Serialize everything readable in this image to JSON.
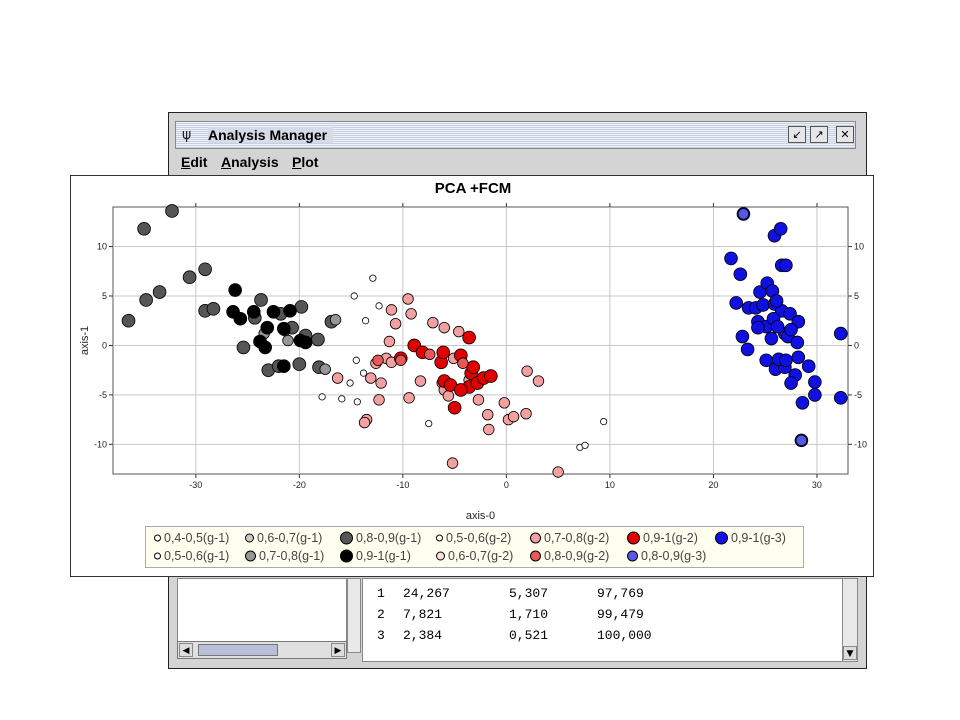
{
  "window": {
    "title": "Analysis Manager",
    "icon": "app-tree-icon",
    "buttons": [
      "minimize-icon",
      "maximize-icon",
      "close-icon"
    ],
    "menus": [
      {
        "label": "Edit",
        "mnemonic": "E",
        "rest": "dit"
      },
      {
        "label": "Analysis",
        "mnemonic": "A",
        "rest": "nalysis"
      },
      {
        "label": "Plot",
        "mnemonic": "P",
        "rest": "lot"
      }
    ]
  },
  "table": {
    "rows": [
      [
        "1",
        "24,267",
        "5,307",
        "97,769"
      ],
      [
        "2",
        "7,821",
        "1,710",
        "99,479"
      ],
      [
        "3",
        "2,384",
        "0,521",
        "100,000"
      ]
    ]
  },
  "plot": {
    "title": "PCA +FCM",
    "xlabel": "axis-0",
    "ylabel": "axis-1"
  },
  "chart_data": {
    "type": "scatter",
    "title": "PCA +FCM",
    "xlabel": "axis-0",
    "ylabel": "axis-1",
    "xlim": [
      -38,
      33
    ],
    "ylim": [
      -13,
      14
    ],
    "xticks": [
      -30,
      -20,
      -10,
      0,
      10,
      20,
      30
    ],
    "yticks": [
      -10,
      -5,
      0,
      5,
      10
    ],
    "grid": true,
    "legend_position": "bottom",
    "series": [
      {
        "name": "0,4-0,5(g-1)",
        "color": "#ffffff",
        "size": "tiny",
        "points": []
      },
      {
        "name": "0,6-0,7(g-1)",
        "color": "#c8c8c8",
        "size": "small",
        "points": []
      },
      {
        "name": "0,8-0,9(g-1)",
        "color": "#555555",
        "size": "large",
        "points": [
          [
            -35,
            11.8
          ],
          [
            -32.3,
            13.6
          ],
          [
            -36.5,
            2.5
          ],
          [
            -34.8,
            4.6
          ],
          [
            -33.5,
            5.4
          ],
          [
            -30.6,
            6.9
          ],
          [
            -29.1,
            7.7
          ],
          [
            -29.1,
            3.5
          ],
          [
            -28.3,
            3.7
          ],
          [
            -25.4,
            -0.2
          ],
          [
            -23.7,
            4.6
          ],
          [
            -23,
            -2.5
          ],
          [
            -22,
            -2.1
          ],
          [
            -20.7,
            1.8
          ],
          [
            -19.8,
            3.9
          ],
          [
            -19.4,
            1
          ],
          [
            -18.2,
            0.6
          ],
          [
            -21.8,
            3.2
          ],
          [
            -24.3,
            2.8
          ],
          [
            -16.9,
            2.4
          ],
          [
            -20,
            -1.9
          ],
          [
            -18.1,
            -2.2
          ]
        ]
      },
      {
        "name": "0,5-0,6(g-2)",
        "color": "#ffffff",
        "size": "tiny",
        "points": [
          [
            -12.9,
            6.8
          ],
          [
            -14.7,
            5
          ],
          [
            -12.3,
            4
          ],
          [
            -13.6,
            2.5
          ],
          [
            -14.5,
            -1.5
          ],
          [
            -13.8,
            -2.8
          ],
          [
            -15.1,
            -3.8
          ],
          [
            -17.8,
            -5.2
          ],
          [
            -15.9,
            -5.4
          ],
          [
            -14.4,
            -5.7
          ],
          [
            -7.5,
            -7.9
          ],
          [
            7.1,
            -10.3
          ],
          [
            7.6,
            -10.1
          ],
          [
            9.4,
            -7.7
          ]
        ]
      },
      {
        "name": "0,7-0,8(g-2)",
        "color": "#f4a0a0",
        "size": "medium",
        "points": [
          [
            -11.1,
            3.6
          ],
          [
            -9.5,
            4.7
          ],
          [
            -9.2,
            3.2
          ],
          [
            -10.7,
            2.2
          ],
          [
            -11.3,
            0.4
          ],
          [
            -12.6,
            -1.8
          ],
          [
            -13.1,
            -3.3
          ],
          [
            -11.6,
            -1.3
          ],
          [
            -12.3,
            -5.5
          ],
          [
            -13.5,
            -7.5
          ],
          [
            -9.4,
            -5.3
          ],
          [
            -8.3,
            -3.6
          ],
          [
            -6.2,
            -3.8
          ],
          [
            -6,
            -4.5
          ],
          [
            -5.6,
            -5.1
          ],
          [
            -3.6,
            -3.5
          ],
          [
            -2.7,
            -5.5
          ],
          [
            -1.8,
            -7
          ],
          [
            -1.7,
            -8.5
          ],
          [
            1.9,
            -6.9
          ],
          [
            2,
            -2.6
          ],
          [
            3.1,
            -3.6
          ],
          [
            -0.2,
            -5.8
          ],
          [
            0.2,
            -7.5
          ],
          [
            0.7,
            -7.2
          ],
          [
            -4.6,
            1.4
          ],
          [
            -7.1,
            2.3
          ],
          [
            -6,
            1.8
          ],
          [
            -5.1,
            -1.3
          ],
          [
            -11.1,
            -1.7
          ],
          [
            -12.1,
            -3.8
          ],
          [
            -5.2,
            -11.9
          ],
          [
            5,
            -12.8
          ],
          [
            -13.7,
            -7.8
          ],
          [
            -16.3,
            -3.3
          ]
        ]
      },
      {
        "name": "0,9-1(g-2)",
        "color": "#e00000",
        "size": "large",
        "points": [
          [
            -10.2,
            -1.3
          ],
          [
            -8.9,
            0
          ],
          [
            -8.1,
            -0.7
          ],
          [
            -6.3,
            -1.7
          ],
          [
            -6,
            -3.6
          ],
          [
            -5.4,
            -4
          ],
          [
            -4.4,
            -1
          ],
          [
            -3.4,
            -2.8
          ],
          [
            -3.6,
            -4.2
          ],
          [
            -2.8,
            -3.8
          ],
          [
            -2.2,
            -3.3
          ],
          [
            -1.5,
            -3.1
          ],
          [
            -3.2,
            -2.2
          ],
          [
            -6.1,
            -0.7
          ],
          [
            -3.6,
            0.8
          ],
          [
            -5,
            -6.3
          ],
          [
            -4.4,
            -4.5
          ]
        ]
      },
      {
        "name": "0,9-1(g-3)",
        "color": "#1010e0",
        "size": "large",
        "points": [
          [
            21.7,
            8.8
          ],
          [
            22.6,
            7.2
          ],
          [
            24.5,
            5.4
          ],
          [
            25.2,
            6.3
          ],
          [
            25.7,
            5.5
          ],
          [
            26.6,
            8.1
          ],
          [
            25.9,
            11.1
          ],
          [
            26.5,
            11.8
          ],
          [
            27,
            8.1
          ],
          [
            22.2,
            4.3
          ],
          [
            23.4,
            3.8
          ],
          [
            24.1,
            3.8
          ],
          [
            24.8,
            4.1
          ],
          [
            25.9,
            4.2
          ],
          [
            26.6,
            3.5
          ],
          [
            24.3,
            2.4
          ],
          [
            25.1,
            1.9
          ],
          [
            25.8,
            2.7
          ],
          [
            26.1,
            4.5
          ],
          [
            27.4,
            3.2
          ],
          [
            28.2,
            2.4
          ],
          [
            26.9,
            1.2
          ],
          [
            22.8,
            0.9
          ],
          [
            24.3,
            1.8
          ],
          [
            26.2,
            1.9
          ],
          [
            27.2,
            0.9
          ],
          [
            28.1,
            0.3
          ],
          [
            23.3,
            -0.4
          ],
          [
            25.6,
            0.7
          ],
          [
            27.5,
            1.6
          ],
          [
            25.1,
            -1.5
          ],
          [
            26,
            -2.4
          ],
          [
            26.9,
            -2.2
          ],
          [
            27.9,
            -3
          ],
          [
            27.5,
            -3.8
          ],
          [
            26.3,
            -1.4
          ],
          [
            28.2,
            -1.2
          ],
          [
            29.2,
            -2.1
          ],
          [
            27,
            -1.5
          ],
          [
            29.8,
            -3.7
          ],
          [
            29.8,
            -5
          ],
          [
            28.6,
            -5.8
          ],
          [
            32.3,
            1.2
          ],
          [
            32.3,
            -5.3
          ],
          [
            28.5,
            -9.6
          ],
          [
            22.9,
            13.3
          ]
        ]
      },
      {
        "name": "0,5-0,6(g-1)",
        "color": "#ffffff",
        "size": "tiny",
        "points": []
      },
      {
        "name": "0,7-0,8(g-1)",
        "color": "#969696",
        "size": "medium",
        "points": [
          [
            -16.5,
            2.6
          ],
          [
            -21.1,
            0.5
          ],
          [
            -21.4,
            1.5
          ],
          [
            -23.4,
            1.2
          ],
          [
            -17.5,
            -2.4
          ]
        ]
      },
      {
        "name": "0,9-1(g-1)",
        "color": "#000000",
        "size": "large",
        "points": [
          [
            -26.2,
            5.6
          ],
          [
            -26.4,
            3.4
          ],
          [
            -25.7,
            2.7
          ],
          [
            -24.4,
            3.4
          ],
          [
            -23.8,
            0.4
          ],
          [
            -23.1,
            1.8
          ],
          [
            -22.5,
            3.4
          ],
          [
            -21.5,
            1.7
          ],
          [
            -20.9,
            3.5
          ],
          [
            -21.5,
            -2.1
          ],
          [
            -19.9,
            0.5
          ],
          [
            -19.4,
            0.3
          ],
          [
            -23.3,
            -0.2
          ]
        ]
      },
      {
        "name": "0,6-0,7(g-2)",
        "color": "#fcdede",
        "size": "small",
        "points": []
      },
      {
        "name": "0,8-0,9(g-2)",
        "color": "#e85858",
        "size": "medium",
        "points": [
          [
            -12.4,
            -1.5
          ],
          [
            -10.2,
            -1.5
          ],
          [
            -7.4,
            -0.9
          ],
          [
            -4.2,
            -1.8
          ]
        ]
      },
      {
        "name": "0,8-0,9(g-3)",
        "color": "#5858e8",
        "size": "medium",
        "points": [
          [
            22.9,
            13.3
          ],
          [
            28.5,
            -9.6
          ]
        ]
      }
    ]
  }
}
